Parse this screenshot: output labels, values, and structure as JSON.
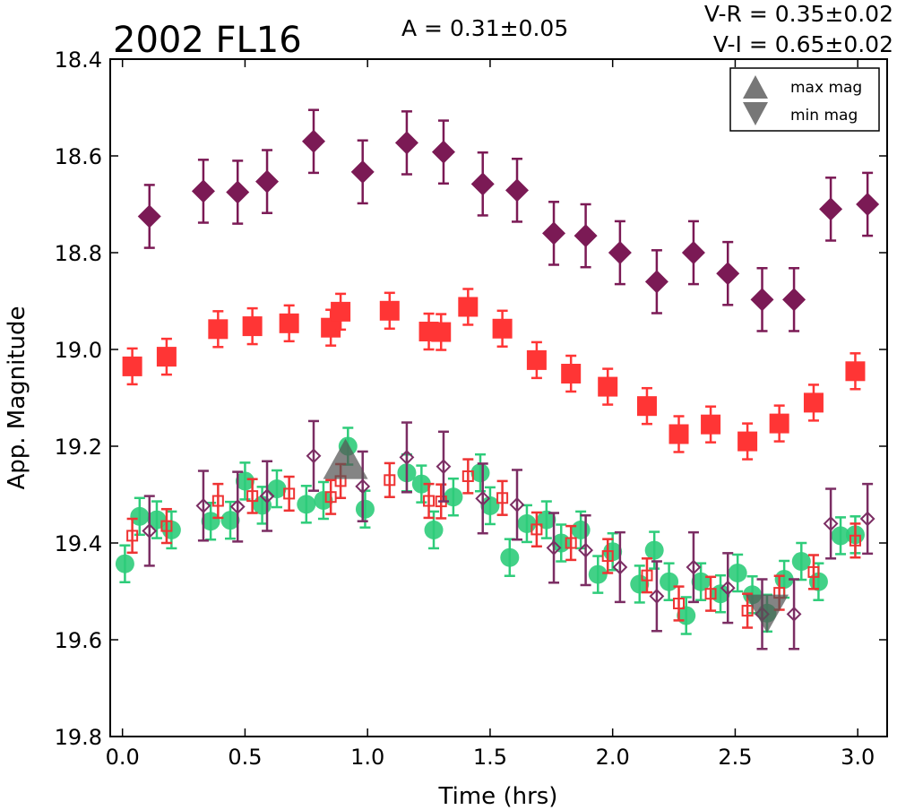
{
  "chart_data": {
    "type": "scatter",
    "title": "2002 FL16",
    "annotations": {
      "amplitude": "A  = 0.31±0.05",
      "vr": "V-R = 0.35±0.02",
      "vi": "V-I  = 0.65±0.02"
    },
    "xlabel": "Time (hrs)",
    "ylabel": "App. Magnitude",
    "xlim": [
      -0.05,
      3.12
    ],
    "ylim": [
      19.8,
      18.4
    ],
    "y_inverted": true,
    "xticks": [
      "0.0",
      "0.5",
      "1.0",
      "1.5",
      "2.0",
      "2.5",
      "3.0"
    ],
    "yticks": [
      "18.4",
      "18.6",
      "18.8",
      "19.0",
      "19.2",
      "19.4",
      "19.6",
      "19.8"
    ],
    "grid": false,
    "legend": {
      "position": "top-right",
      "entries": [
        {
          "label": "max mag",
          "marker": "triangle-up",
          "color": "#777777"
        },
        {
          "label": "min mag",
          "marker": "triangle-down",
          "color": "#777777"
        }
      ]
    },
    "colors": {
      "diamond_filled": "#7b1a55",
      "square_filled": "#ff3535",
      "circle_filled": "#2ecc7a",
      "diamond_open": "#7b2d63",
      "square_open": "#ee3333",
      "extrema": "#555555"
    },
    "series": [
      {
        "marker": "diamond-filled",
        "color": "#7b1a55",
        "err": 0.065,
        "points": [
          [
            0.11,
            18.725
          ],
          [
            0.33,
            18.673
          ],
          [
            0.47,
            18.675
          ],
          [
            0.59,
            18.653
          ],
          [
            0.78,
            18.57
          ],
          [
            0.98,
            18.633
          ],
          [
            1.16,
            18.573
          ],
          [
            1.31,
            18.592
          ],
          [
            1.47,
            18.658
          ],
          [
            1.61,
            18.671
          ],
          [
            1.76,
            18.76
          ],
          [
            1.89,
            18.765
          ],
          [
            2.03,
            18.8
          ],
          [
            2.18,
            18.86
          ],
          [
            2.33,
            18.8
          ],
          [
            2.47,
            18.843
          ],
          [
            2.61,
            18.897
          ],
          [
            2.74,
            18.897
          ],
          [
            2.89,
            18.71
          ],
          [
            3.04,
            18.7
          ]
        ]
      },
      {
        "marker": "square-filled",
        "color": "#ff3535",
        "err": 0.037,
        "points": [
          [
            0.04,
            19.035
          ],
          [
            0.18,
            19.015
          ],
          [
            0.39,
            18.958
          ],
          [
            0.53,
            18.952
          ],
          [
            0.68,
            18.946
          ],
          [
            0.85,
            18.955
          ],
          [
            0.89,
            18.922
          ],
          [
            1.09,
            18.92
          ],
          [
            1.25,
            18.963
          ],
          [
            1.3,
            18.964
          ],
          [
            1.41,
            18.912
          ],
          [
            1.55,
            18.957
          ],
          [
            1.69,
            19.022
          ],
          [
            1.83,
            19.05
          ],
          [
            1.98,
            19.077
          ],
          [
            2.14,
            19.117
          ],
          [
            2.27,
            19.175
          ],
          [
            2.4,
            19.155
          ],
          [
            2.55,
            19.19
          ],
          [
            2.68,
            19.153
          ],
          [
            2.82,
            19.11
          ],
          [
            2.99,
            19.045
          ]
        ]
      },
      {
        "marker": "circle-filled",
        "color": "#2ecc7a",
        "err": 0.038,
        "points": [
          [
            0.01,
            19.443
          ],
          [
            0.07,
            19.345
          ],
          [
            0.14,
            19.352
          ],
          [
            0.2,
            19.373
          ],
          [
            0.36,
            19.355
          ],
          [
            0.44,
            19.353
          ],
          [
            0.5,
            19.272
          ],
          [
            0.57,
            19.322
          ],
          [
            0.63,
            19.288
          ],
          [
            0.75,
            19.32
          ],
          [
            0.82,
            19.312
          ],
          [
            0.92,
            19.2
          ],
          [
            0.99,
            19.33
          ],
          [
            1.16,
            19.255
          ],
          [
            1.22,
            19.278
          ],
          [
            1.27,
            19.373
          ],
          [
            1.35,
            19.305
          ],
          [
            1.46,
            19.255
          ],
          [
            1.5,
            19.323
          ],
          [
            1.58,
            19.43
          ],
          [
            1.65,
            19.36
          ],
          [
            1.73,
            19.352
          ],
          [
            1.79,
            19.4
          ],
          [
            1.87,
            19.373
          ],
          [
            1.94,
            19.465
          ],
          [
            2.0,
            19.418
          ],
          [
            2.11,
            19.485
          ],
          [
            2.17,
            19.415
          ],
          [
            2.23,
            19.48
          ],
          [
            2.3,
            19.55
          ],
          [
            2.36,
            19.48
          ],
          [
            2.44,
            19.505
          ],
          [
            2.51,
            19.462
          ],
          [
            2.57,
            19.507
          ],
          [
            2.63,
            19.545
          ],
          [
            2.7,
            19.475
          ],
          [
            2.77,
            19.438
          ],
          [
            2.84,
            19.48
          ],
          [
            2.93,
            19.385
          ],
          [
            2.99,
            19.383
          ]
        ]
      },
      {
        "marker": "square-open",
        "color": "#ee3333",
        "err": 0.035,
        "points": [
          [
            0.04,
            19.385
          ],
          [
            0.18,
            19.365
          ],
          [
            0.39,
            19.313
          ],
          [
            0.53,
            19.303
          ],
          [
            0.68,
            19.298
          ],
          [
            0.85,
            19.305
          ],
          [
            0.89,
            19.272
          ],
          [
            1.09,
            19.27
          ],
          [
            1.25,
            19.313
          ],
          [
            1.3,
            19.314
          ],
          [
            1.41,
            19.262
          ],
          [
            1.55,
            19.307
          ],
          [
            1.69,
            19.372
          ],
          [
            1.83,
            19.4
          ],
          [
            1.98,
            19.427
          ],
          [
            2.14,
            19.467
          ],
          [
            2.27,
            19.525
          ],
          [
            2.4,
            19.505
          ],
          [
            2.55,
            19.54
          ],
          [
            2.68,
            19.503
          ],
          [
            2.82,
            19.46
          ],
          [
            2.99,
            19.395
          ]
        ]
      },
      {
        "marker": "diamond-open",
        "color": "#7b2d63",
        "err": 0.072,
        "points": [
          [
            0.11,
            19.375
          ],
          [
            0.33,
            19.323
          ],
          [
            0.47,
            19.325
          ],
          [
            0.59,
            19.303
          ],
          [
            0.78,
            19.22
          ],
          [
            0.98,
            19.283
          ],
          [
            1.16,
            19.223
          ],
          [
            1.31,
            19.242
          ],
          [
            1.47,
            19.308
          ],
          [
            1.61,
            19.321
          ],
          [
            1.76,
            19.41
          ],
          [
            1.89,
            19.415
          ],
          [
            2.03,
            19.45
          ],
          [
            2.18,
            19.51
          ],
          [
            2.33,
            19.45
          ],
          [
            2.47,
            19.493
          ],
          [
            2.61,
            19.547
          ],
          [
            2.74,
            19.547
          ],
          [
            2.89,
            19.36
          ],
          [
            3.04,
            19.35
          ]
        ]
      },
      {
        "marker": "triangle-up",
        "color": "#555555",
        "err": 0,
        "points": [
          [
            0.91,
            19.24
          ]
        ]
      },
      {
        "marker": "triangle-down",
        "color": "#555555",
        "err": 0,
        "points": [
          [
            2.63,
            19.54
          ]
        ]
      }
    ]
  }
}
